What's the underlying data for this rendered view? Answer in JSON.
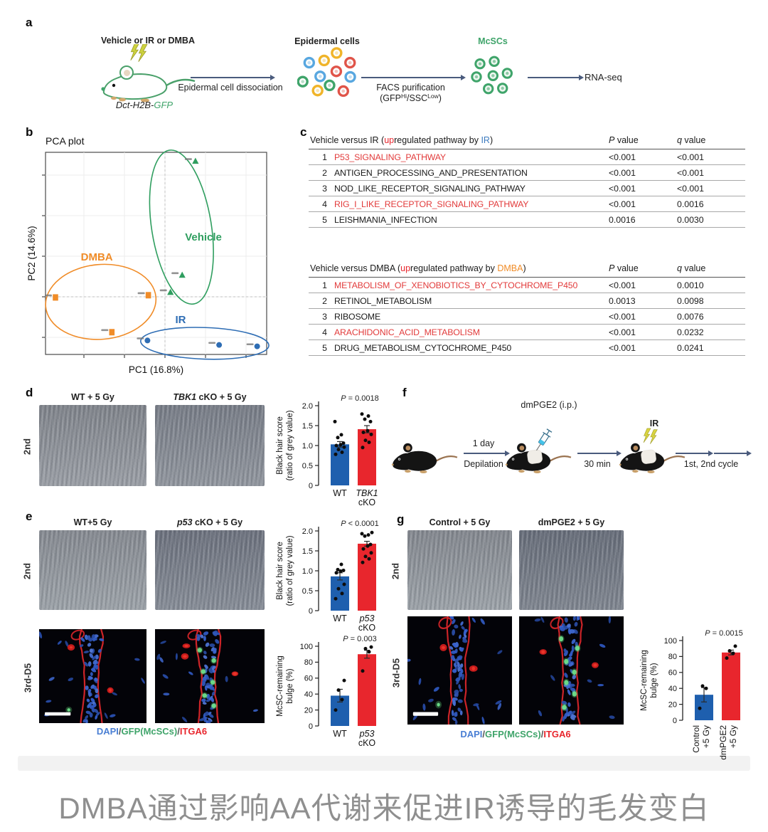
{
  "page": {
    "caption": "DMBA通过影响AA代谢来促进IR诱导的毛发变白"
  },
  "colors": {
    "blue": "#1e5fae",
    "red": "#e8262d",
    "green": "#3fa46a",
    "orange": "#f08c28",
    "ir_blue": "#3d7bbf"
  },
  "panel_a": {
    "label": "a",
    "mouse_title": "Vehicle or IR or DMBA",
    "mouse_caption_parts": [
      {
        "t": "Dct-H2B-",
        "i": true
      },
      {
        "t": "GFP",
        "i": true,
        "c": "#3fa46a"
      }
    ],
    "arrow1_label": "Epidermal cell dissociation",
    "cells_title": "Epidermal cells",
    "facs_line1": "FACS purification",
    "facs_line2_parts": [
      {
        "t": "(GFP"
      },
      {
        "t": "Hi",
        "sup": true
      },
      {
        "t": "/SSC"
      },
      {
        "t": "Low",
        "sup": true
      },
      {
        "t": ")"
      }
    ],
    "mcsc_title": "McSCs",
    "rnaseq_label": "RNA-seq"
  },
  "panel_b": {
    "label": "b"
  },
  "panel_c": {
    "label": "c",
    "tables": [
      {
        "header_parts": [
          {
            "t": "Vehicle versus IR ("
          },
          {
            "t": "up",
            "c": "#e8262d"
          },
          {
            "t": "regulated pathway by "
          },
          {
            "t": "IR",
            "c": "#3d7bbf"
          },
          {
            "t": ")"
          }
        ],
        "p_header_parts": [
          {
            "t": "P",
            "i": true
          },
          {
            "t": " value"
          }
        ],
        "q_header_parts": [
          {
            "t": "q",
            "i": true
          },
          {
            "t": " value"
          }
        ],
        "rows": [
          {
            "n": "1",
            "name": "P53_SIGNALING_PATHWAY",
            "p": "<0.001",
            "q": "<0.001",
            "red": true
          },
          {
            "n": "2",
            "name": "ANTIGEN_PROCESSING_AND_PRESENTATION",
            "p": "<0.001",
            "q": "<0.001",
            "red": false
          },
          {
            "n": "3",
            "name": "NOD_LIKE_RECEPTOR_SIGNALING_PATHWAY",
            "p": "<0.001",
            "q": "<0.001",
            "red": false
          },
          {
            "n": "4",
            "name": "RIG_I_LIKE_RECEPTOR_SIGNALING_PATHWAY",
            "p": "<0.001",
            "q": "0.0016",
            "red": true
          },
          {
            "n": "5",
            "name": "LEISHMANIA_INFECTION",
            "p": "0.0016",
            "q": "0.0030",
            "red": false
          }
        ]
      },
      {
        "header_parts": [
          {
            "t": "Vehicle versus DMBA ("
          },
          {
            "t": "up",
            "c": "#e8262d"
          },
          {
            "t": "regulated pathway by "
          },
          {
            "t": "DMBA",
            "c": "#f08c28"
          },
          {
            "t": ")"
          }
        ],
        "p_header_parts": [
          {
            "t": "P",
            "i": true
          },
          {
            "t": " value"
          }
        ],
        "q_header_parts": [
          {
            "t": "q",
            "i": true
          },
          {
            "t": " value"
          }
        ],
        "rows": [
          {
            "n": "1",
            "name": "METABOLISM_OF_XENOBIOTICS_BY_CYTOCHROME_P450",
            "p": "<0.001",
            "q": "0.0010",
            "red": true
          },
          {
            "n": "2",
            "name": "RETINOL_METABOLISM",
            "p": "0.0013",
            "q": "0.0098",
            "red": false
          },
          {
            "n": "3",
            "name": "RIBOSOME",
            "p": "<0.001",
            "q": "0.0076",
            "red": false
          },
          {
            "n": "4",
            "name": "ARACHIDONIC_ACID_METABOLISM",
            "p": "<0.001",
            "q": "0.0232",
            "red": true
          },
          {
            "n": "5",
            "name": "DRUG_METABOLISM_CYTOCHROME_P450",
            "p": "<0.001",
            "q": "0.0241",
            "red": false
          }
        ]
      }
    ]
  },
  "panel_d": {
    "label": "d",
    "row_label": "2nd",
    "img1_title_parts": [
      {
        "t": "WT + 5 Gy"
      }
    ],
    "img2_title_parts": [
      {
        "t": "TBK1",
        "i": true
      },
      {
        "t": " cKO + 5 Gy"
      }
    ]
  },
  "panel_e": {
    "label": "e",
    "row1_label": "2nd",
    "row2_label": "3rd-D5",
    "img1_title_parts": [
      {
        "t": "WT+5 Gy"
      }
    ],
    "img2_title_parts": [
      {
        "t": "p53",
        "i": true
      },
      {
        "t": " cKO + 5 Gy"
      }
    ],
    "fluor_images": [
      {
        "green_dots": 1,
        "outside": true,
        "scalebar": true,
        "red_blobs": 2
      },
      {
        "green_dots": 6,
        "outside": false,
        "scalebar": false,
        "red_blobs": 3
      }
    ]
  },
  "panel_f": {
    "label": "f",
    "injection_label": "dmPGE2 (i.p.)",
    "arrow1_top": "1 day",
    "arrow1_bottom": "Depilation",
    "arrow2_bottom": "30 min",
    "ir_label": "IR",
    "arrow3_bottom": "1st, 2nd cycle"
  },
  "panel_g": {
    "label": "g",
    "row1_label": "2nd",
    "row2_label": "3rd-D5",
    "img1_title_parts": [
      {
        "t": "Control + 5 Gy"
      }
    ],
    "img2_title_parts": [
      {
        "t": "dmPGE2 + 5 Gy"
      }
    ],
    "fluor_images": [
      {
        "green_dots": 1,
        "outside": true,
        "scalebar": true,
        "red_blobs": 2
      },
      {
        "green_dots": 7,
        "outside": false,
        "scalebar": false,
        "red_blobs": 2
      }
    ]
  },
  "fluor_caption_parts": [
    {
      "t": "DAPI",
      "c": "#4a7fd4"
    },
    {
      "t": "/",
      "c": "#555555"
    },
    {
      "t": "GFP(McSCs)",
      "c": "#3fa46a"
    },
    {
      "t": "/",
      "c": "#555555"
    },
    {
      "t": "ITGA6",
      "c": "#e8262d"
    }
  ],
  "chart_data": [
    {
      "id": "pca",
      "type": "scatter",
      "title": "PCA plot",
      "xlabel": "PC1 (16.8%)",
      "ylabel": "PC2 (14.6%)",
      "grid": true,
      "groups": [
        {
          "name": "Vehicle",
          "color": "#2f9e5f",
          "marker": "triangle",
          "points": [
            [
              0.678,
              0.044
            ],
            [
              0.618,
              0.608
            ],
            [
              0.565,
              0.693
            ]
          ],
          "ellipse": {
            "cx": 0.615,
            "cy": 0.37,
            "rx": 0.135,
            "ry": 0.385,
            "rot": -9
          },
          "label_pos": [
            0.714,
            0.436
          ]
        },
        {
          "name": "DMBA",
          "color": "#f08c28",
          "marker": "square",
          "points": [
            [
              0.045,
              0.718
            ],
            [
              0.465,
              0.707
            ],
            [
              0.3,
              0.89
            ]
          ],
          "ellipse": {
            "cx": 0.25,
            "cy": 0.74,
            "rx": 0.25,
            "ry": 0.185,
            "rot": -5
          },
          "label_pos": [
            0.232,
            0.535
          ]
        },
        {
          "name": "IR",
          "color": "#2e6db4",
          "marker": "circle",
          "points": [
            [
              0.461,
              0.931
            ],
            [
              0.785,
              0.953
            ],
            [
              0.957,
              0.96
            ]
          ],
          "ellipse": {
            "cx": 0.72,
            "cy": 0.945,
            "rx": 0.29,
            "ry": 0.078,
            "rot": 2
          },
          "label_pos": [
            0.611,
            0.845
          ]
        }
      ]
    },
    {
      "id": "d_black_hair",
      "type": "bar",
      "ylabel_lines": [
        "Black hair score",
        "(ratio of grey value)"
      ],
      "ylim": [
        0,
        2
      ],
      "yticks": [
        "0",
        "0.5",
        "1.0",
        "1.5",
        "2.0"
      ],
      "p_label": "P = 0.0018",
      "bars": [
        {
          "label_lines": [
            "WT"
          ],
          "italic_first": false,
          "value": 1.03,
          "err": 0.07,
          "color": "#1e5fae",
          "dots": [
            0.78,
            0.83,
            0.9,
            0.96,
            1.0,
            1.02,
            1.06,
            1.2,
            1.27,
            1.6
          ]
        },
        {
          "label_lines": [
            "TBK1",
            "cKO"
          ],
          "italic_first": true,
          "value": 1.41,
          "err": 0.09,
          "color": "#e8262d",
          "dots": [
            0.95,
            1.08,
            1.13,
            1.28,
            1.33,
            1.37,
            1.6,
            1.66,
            1.74,
            1.79
          ]
        }
      ]
    },
    {
      "id": "e_black_hair",
      "type": "bar",
      "ylabel_lines": [
        "Black hair score",
        "(ratio of grey value)"
      ],
      "ylim": [
        0,
        2
      ],
      "yticks": [
        "0",
        "0.5",
        "1.0",
        "1.5",
        "2.0"
      ],
      "p_label": "P < 0.0001",
      "bars": [
        {
          "label_lines": [
            "WT"
          ],
          "italic_first": false,
          "value": 0.86,
          "err": 0.09,
          "color": "#1e5fae",
          "dots": [
            0.3,
            0.43,
            0.55,
            0.66,
            0.95,
            0.99,
            1.01,
            1.03,
            1.16
          ]
        },
        {
          "label_lines": [
            "p53",
            "cKO"
          ],
          "italic_first": true,
          "value": 1.68,
          "err": 0.06,
          "color": "#e8262d",
          "dots": [
            1.21,
            1.3,
            1.36,
            1.45,
            1.55,
            1.62,
            1.66,
            1.87,
            1.9,
            1.93,
            1.96
          ]
        }
      ]
    },
    {
      "id": "e_bulge",
      "type": "bar",
      "ylabel_lines": [
        "McSC-remaining",
        "bulge (%)"
      ],
      "ylim": [
        0,
        100
      ],
      "yticks": [
        "0",
        "20",
        "40",
        "60",
        "80",
        "100"
      ],
      "p_label": "P = 0.003",
      "bars": [
        {
          "label_lines": [
            "WT"
          ],
          "italic_first": false,
          "value": 38,
          "err": 8,
          "color": "#1e5fae",
          "dots": [
            20,
            33,
            45,
            57
          ]
        },
        {
          "label_lines": [
            "p53",
            "cKO"
          ],
          "italic_first": true,
          "value": 90,
          "err": 5,
          "color": "#e8262d",
          "dots": [
            69,
            93,
            97,
            99
          ]
        }
      ]
    },
    {
      "id": "g_bulge",
      "type": "bar",
      "rotated_labels": true,
      "ylabel_lines": [
        "McSC-remaining",
        "bulge (%)"
      ],
      "ylim": [
        0,
        100
      ],
      "yticks": [
        "0",
        "20",
        "40",
        "60",
        "80",
        "100"
      ],
      "p_label": "P = 0.0015",
      "bars": [
        {
          "label_lines": [
            "Control",
            "+5 Gy"
          ],
          "italic_first": false,
          "value": 32,
          "err": 9,
          "color": "#1e5fae",
          "dots": [
            15,
            40,
            43
          ]
        },
        {
          "label_lines": [
            "dmPGE2",
            "+5 Gy"
          ],
          "italic_first": false,
          "value": 85,
          "err": 3,
          "color": "#e8262d",
          "dots": [
            78,
            84,
            87,
            93
          ]
        }
      ]
    }
  ]
}
